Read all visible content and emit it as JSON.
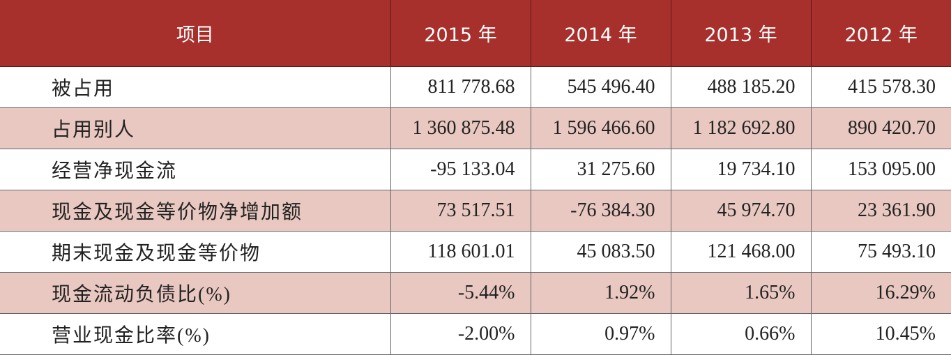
{
  "table": {
    "headers": [
      "项目",
      "2015 年",
      "2014 年",
      "2013 年",
      "2012 年"
    ],
    "rows": [
      {
        "label": "被占用",
        "values": [
          "811 778.68",
          "545 496.40",
          "488 185.20",
          "415 578.30"
        ]
      },
      {
        "label": "占用别人",
        "values": [
          "1 360 875.48",
          "1 596 466.60",
          "1 182 692.80",
          "890 420.70"
        ]
      },
      {
        "label": "经营净现金流",
        "values": [
          "-95 133.04",
          "31 275.60",
          "19 734.10",
          "153 095.00"
        ]
      },
      {
        "label": "现金及现金等价物净增加额",
        "values": [
          "73 517.51",
          "-76 384.30",
          "45 974.70",
          "23 361.90"
        ]
      },
      {
        "label": "期末现金及现金等价物",
        "values": [
          "118 601.01",
          "45 083.50",
          "121 468.00",
          "75 493.10"
        ]
      },
      {
        "label": "现金流动负债比(%)",
        "values": [
          "-5.44%",
          "1.92%",
          "1.65%",
          "16.29%"
        ]
      },
      {
        "label": "营业现金比率(%)",
        "values": [
          "-2.00%",
          "0.97%",
          "0.66%",
          "10.45%"
        ]
      }
    ]
  },
  "colors": {
    "header_bg": "#a8302c",
    "header_text": "#ffffff",
    "shaded_row_bg": "#e8c8c0",
    "plain_row_bg": "#ffffff",
    "grid_line": "#666666"
  }
}
